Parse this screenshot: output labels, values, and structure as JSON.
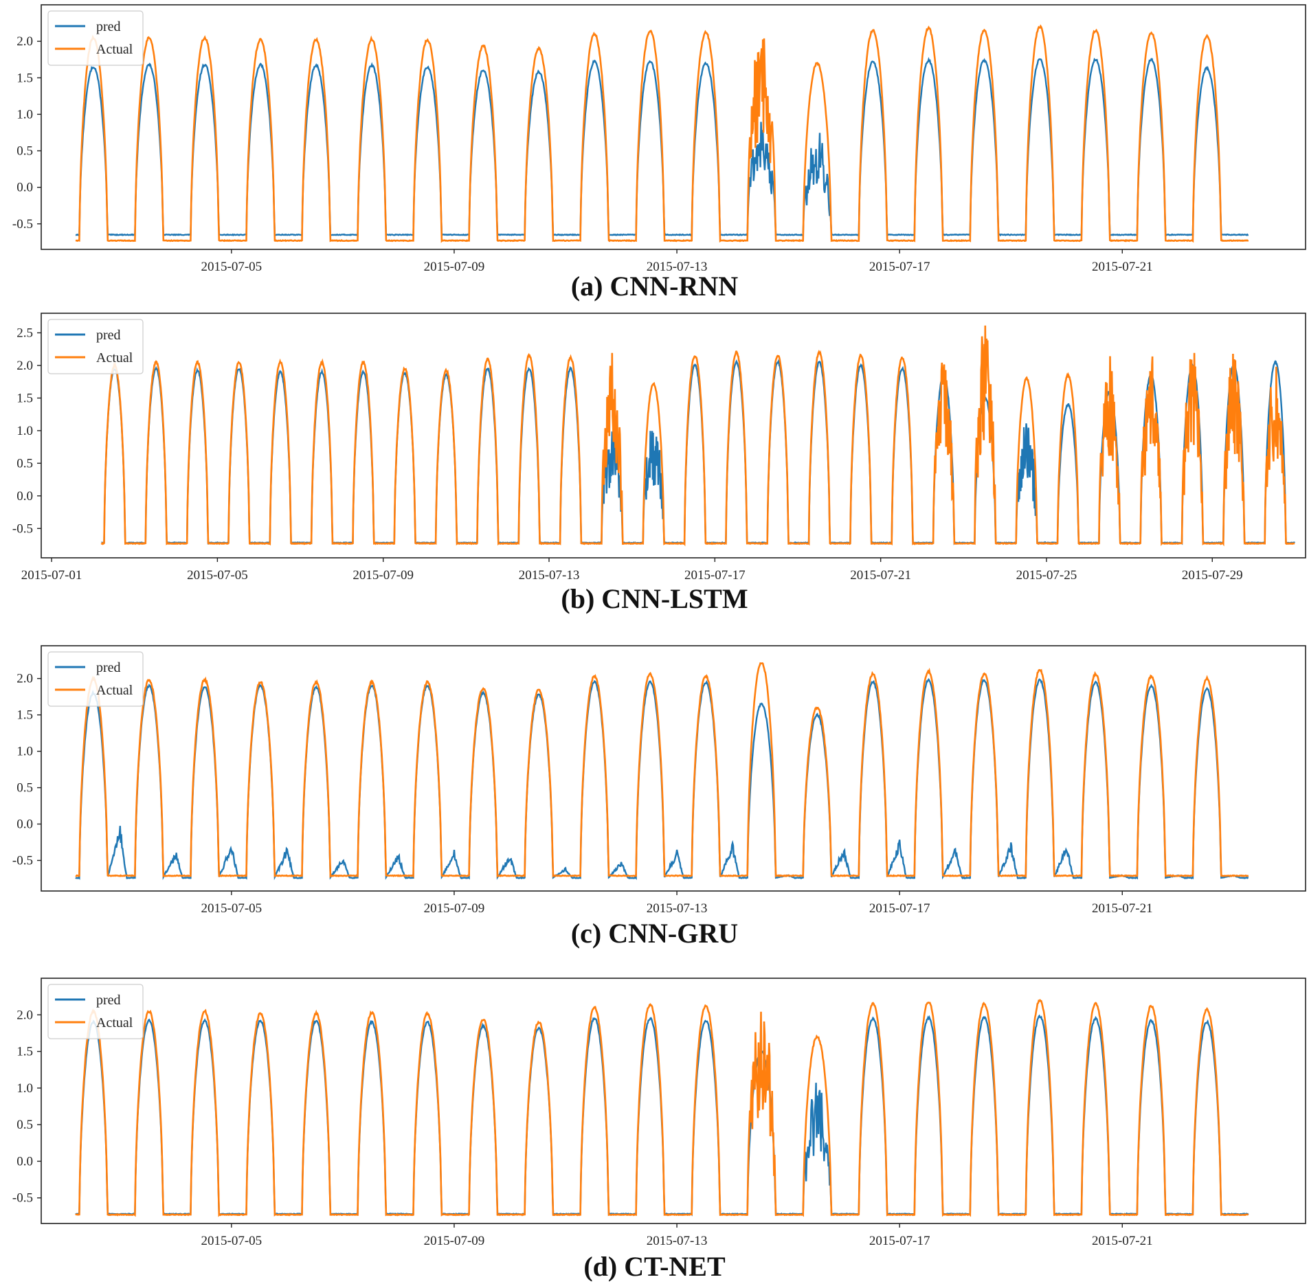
{
  "figure": {
    "panels": [
      {
        "id": "a",
        "caption": "(a) CNN-RNN"
      },
      {
        "id": "b",
        "caption": "(b) CNN-LSTM"
      },
      {
        "id": "c",
        "caption": "(c) CNN-GRU"
      },
      {
        "id": "d",
        "caption": "(d) CT-NET"
      }
    ]
  },
  "chart_data": [
    {
      "type": "line",
      "caption": "(a) CNN-RNN",
      "title": "",
      "xlabel": "",
      "ylabel": "",
      "x_start": "2015-07-02",
      "x_end": "2015-07-23",
      "xlim": [
        "2015-07-01T14:00",
        "2015-07-24T07:00"
      ],
      "ylim": [
        -0.85,
        2.5
      ],
      "xticks": [
        "2015-07-05",
        "2015-07-09",
        "2015-07-13",
        "2015-07-17",
        "2015-07-21"
      ],
      "yticks": [
        -0.5,
        0.0,
        0.5,
        1.0,
        1.5,
        2.0
      ],
      "grid": false,
      "legend": {
        "position": "top-left",
        "entries": [
          "pred",
          "Actual"
        ]
      },
      "series": [
        {
          "name": "pred",
          "color": "#1f77b4",
          "baseline": -0.65,
          "daily_peak": [
            1.65,
            1.68,
            1.68,
            1.68,
            1.67,
            1.67,
            1.65,
            1.6,
            1.58,
            1.72,
            1.72,
            1.7,
            1.0,
            0.8,
            1.72,
            1.74,
            1.74,
            1.75,
            1.75,
            1.75,
            1.63
          ]
        },
        {
          "name": "Actual",
          "color": "#ff7f0e",
          "baseline": -0.73,
          "daily_peak": [
            2.05,
            2.05,
            2.05,
            2.02,
            2.02,
            2.03,
            2.02,
            1.94,
            1.9,
            2.1,
            2.14,
            2.12,
            2.28,
            1.7,
            2.15,
            2.18,
            2.15,
            2.2,
            2.15,
            2.12,
            2.07
          ]
        }
      ]
    },
    {
      "type": "line",
      "caption": "(b) CNN-LSTM",
      "title": "",
      "xlabel": "",
      "ylabel": "",
      "x_start": "2015-07-02",
      "x_end": "2015-07-30",
      "xlim": [
        "2015-06-30T18:00",
        "2015-07-31T06:00"
      ],
      "ylim": [
        -0.95,
        2.8
      ],
      "xticks": [
        "2015-07-01",
        "2015-07-05",
        "2015-07-09",
        "2015-07-13",
        "2015-07-17",
        "2015-07-21",
        "2015-07-25",
        "2015-07-29"
      ],
      "yticks": [
        -0.5,
        0.0,
        0.5,
        1.0,
        1.5,
        2.0,
        2.5
      ],
      "grid": false,
      "legend": {
        "position": "top-left",
        "entries": [
          "pred",
          "Actual"
        ]
      },
      "series": [
        {
          "name": "pred",
          "color": "#1f77b4",
          "baseline": -0.72,
          "daily_peak": [
            1.95,
            1.95,
            1.92,
            1.95,
            1.9,
            1.9,
            1.9,
            1.88,
            1.85,
            1.95,
            1.95,
            1.95,
            1.2,
            1.2,
            2.0,
            2.05,
            2.05,
            2.05,
            2.0,
            1.95,
            1.85,
            1.5,
            1.2,
            1.4,
            1.6,
            1.85,
            2.0,
            2.0,
            2.05
          ]
        },
        {
          "name": "Actual",
          "color": "#ff7f0e",
          "baseline": -0.73,
          "daily_peak": [
            2.0,
            2.05,
            2.05,
            2.05,
            2.05,
            2.05,
            2.05,
            1.95,
            1.92,
            2.1,
            2.15,
            2.12,
            2.32,
            1.72,
            2.15,
            2.2,
            2.15,
            2.2,
            2.15,
            2.12,
            2.1,
            2.7,
            1.8,
            1.85,
            2.2,
            2.25,
            2.28,
            2.25,
            2.12
          ]
        }
      ]
    },
    {
      "type": "line",
      "caption": "(c) CNN-GRU",
      "title": "",
      "xlabel": "",
      "ylabel": "",
      "x_start": "2015-07-02",
      "x_end": "2015-07-23",
      "xlim": [
        "2015-07-01T14:00",
        "2015-07-24T07:00"
      ],
      "ylim": [
        -0.92,
        2.45
      ],
      "xticks": [
        "2015-07-05",
        "2015-07-09",
        "2015-07-13",
        "2015-07-17",
        "2015-07-21"
      ],
      "yticks": [
        -0.5,
        0.0,
        0.5,
        1.0,
        1.5,
        2.0
      ],
      "grid": false,
      "legend": {
        "position": "top-left",
        "entries": [
          "pred",
          "Actual"
        ]
      },
      "series": [
        {
          "name": "pred",
          "color": "#1f77b4",
          "baseline": -0.74,
          "daily_peak": [
            1.8,
            1.9,
            1.88,
            1.9,
            1.88,
            1.9,
            1.9,
            1.8,
            1.78,
            1.95,
            1.95,
            1.95,
            1.65,
            1.5,
            1.95,
            1.98,
            1.98,
            1.98,
            1.95,
            1.9,
            1.85
          ],
          "night_rise": [
            0.0,
            -0.35,
            -0.25,
            -0.3,
            -0.45,
            -0.4,
            -0.35,
            -0.4,
            -0.6,
            -0.5,
            -0.35,
            -0.25,
            -0.7,
            -0.3,
            -0.2,
            -0.3,
            -0.25,
            -0.25,
            -0.7,
            -0.7,
            -0.7
          ]
        },
        {
          "name": "Actual",
          "color": "#ff7f0e",
          "baseline": -0.71,
          "daily_peak": [
            2.0,
            1.98,
            1.98,
            1.95,
            1.95,
            1.95,
            1.95,
            1.86,
            1.84,
            2.03,
            2.06,
            2.03,
            2.22,
            1.6,
            2.06,
            2.1,
            2.06,
            2.12,
            2.06,
            2.03,
            2.0
          ]
        }
      ]
    },
    {
      "type": "line",
      "caption": "(d) CT-NET",
      "title": "",
      "xlabel": "",
      "ylabel": "",
      "x_start": "2015-07-02",
      "x_end": "2015-07-23",
      "xlim": [
        "2015-07-01T14:00",
        "2015-07-24T07:00"
      ],
      "ylim": [
        -0.85,
        2.5
      ],
      "xticks": [
        "2015-07-05",
        "2015-07-09",
        "2015-07-13",
        "2015-07-17",
        "2015-07-21"
      ],
      "yticks": [
        -0.5,
        0.0,
        0.5,
        1.0,
        1.5,
        2.0
      ],
      "grid": false,
      "legend": {
        "position": "top-left",
        "entries": [
          "pred",
          "Actual"
        ]
      },
      "series": [
        {
          "name": "pred",
          "color": "#1f77b4",
          "baseline": -0.72,
          "daily_peak": [
            1.9,
            1.92,
            1.92,
            1.92,
            1.92,
            1.9,
            1.9,
            1.85,
            1.82,
            1.95,
            1.95,
            1.92,
            1.5,
            1.1,
            1.95,
            1.96,
            1.96,
            1.98,
            1.95,
            1.92,
            1.9
          ]
        },
        {
          "name": "Actual",
          "color": "#ff7f0e",
          "baseline": -0.73,
          "daily_peak": [
            2.05,
            2.05,
            2.05,
            2.02,
            2.02,
            2.03,
            2.02,
            1.94,
            1.9,
            2.1,
            2.14,
            2.12,
            2.28,
            1.7,
            2.15,
            2.18,
            2.15,
            2.2,
            2.15,
            2.12,
            2.07
          ]
        }
      ]
    }
  ]
}
